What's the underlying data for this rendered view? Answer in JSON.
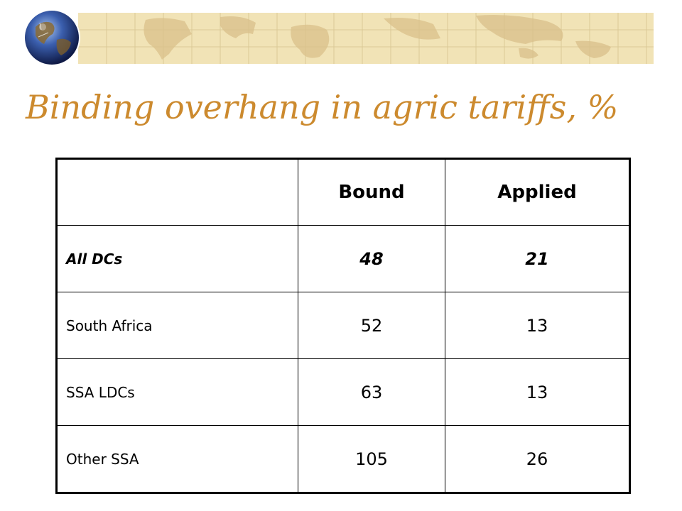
{
  "slide": {
    "title": "Binding overhang in agric tariffs, %",
    "banner": {
      "icon": "world-map-icon",
      "background": "#f1e3b6"
    },
    "logo": {
      "icon": "globe-icon"
    },
    "title_color": "#cc8a2e"
  },
  "table": {
    "columns": [
      "",
      "Bound",
      "Applied"
    ],
    "rows": [
      {
        "label": "All DCs",
        "bound": "48",
        "applied": "21"
      },
      {
        "label": "South Africa",
        "bound": "52",
        "applied": "13"
      },
      {
        "label": "SSA LDCs",
        "bound": "63",
        "applied": "13"
      },
      {
        "label": "Other SSA",
        "bound": "105",
        "applied": "26"
      }
    ]
  }
}
